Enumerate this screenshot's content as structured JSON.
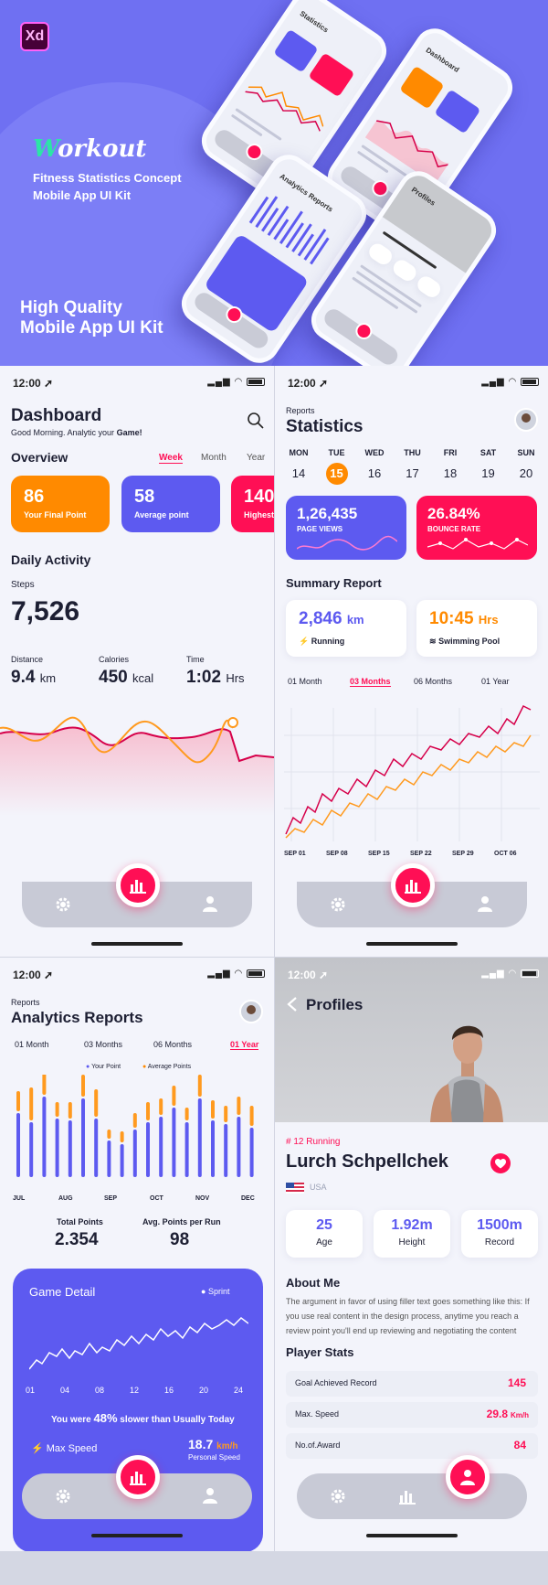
{
  "hero": {
    "badge": "Xd",
    "brand_first": "W",
    "brand_rest": "orkout",
    "subtitle_1": "Fitness Statistics Concept",
    "subtitle_2": "Mobile App UI Kit",
    "hq_1": "High Quality",
    "hq_2": "Mobile App UI Kit",
    "minis": [
      {
        "title": "Statistics"
      },
      {
        "title": "Dashboard"
      },
      {
        "title": "Analytics Reports"
      },
      {
        "title": "Profiles"
      }
    ]
  },
  "status": {
    "time": "12:00 ➚",
    "icons": "▂▄▆ ◠"
  },
  "dashboard": {
    "title": "Dashboard",
    "greeting_1": "Good Morning. Analytic your ",
    "greeting_2": "Game!",
    "overview": "Overview",
    "periods": [
      "Week",
      "Month",
      "Year"
    ],
    "cards": [
      {
        "value": "86",
        "label": "Your Final Point",
        "color": "#ff8a00"
      },
      {
        "value": "58",
        "label": "Average point",
        "color": "#5d5af0"
      },
      {
        "value": "140",
        "label": "Highest",
        "color": "#ff0f55"
      }
    ],
    "daily": "Daily Activity",
    "steps_label": "Steps",
    "steps": "7,526",
    "stats": [
      {
        "label": "Distance",
        "value": "9.4",
        "unit": "km"
      },
      {
        "label": "Calories",
        "value": "450",
        "unit": "kcal"
      },
      {
        "label": "Time",
        "value": "1:02",
        "unit": "Hrs"
      }
    ]
  },
  "statistics": {
    "kicker": "Reports",
    "title": "Statistics",
    "days": [
      {
        "d": "MON",
        "n": "14"
      },
      {
        "d": "TUE",
        "n": "15"
      },
      {
        "d": "WED",
        "n": "16"
      },
      {
        "d": "THU",
        "n": "17"
      },
      {
        "d": "FRI",
        "n": "18"
      },
      {
        "d": "SAT",
        "n": "19"
      },
      {
        "d": "SUN",
        "n": "20"
      }
    ],
    "card1_value": "1,26,435",
    "card1_label": "PAGE VIEWS",
    "card2_value": "26.84%",
    "card2_label": "BOUNCE RATE",
    "summary": "Summary Report",
    "run_value": "2,846",
    "run_unit": "km",
    "run_label": "Running",
    "swim_value": "10:45",
    "swim_unit": "Hrs",
    "swim_label": "Swimming Pool",
    "ranges": [
      "01 Month",
      "03 Months",
      "06 Months",
      "01 Year"
    ],
    "xticks": [
      "SEP 01",
      "SEP 08",
      "SEP 15",
      "SEP 22",
      "SEP 29",
      "OCT 06"
    ]
  },
  "analytics": {
    "kicker": "Reports",
    "title": "Analytics Reports",
    "ranges": [
      "01 Month",
      "03 Months",
      "06 Months",
      "01 Year"
    ],
    "legend_1": "Your Point",
    "legend_2": "Average Points",
    "months": [
      "JUL",
      "AUG",
      "SEP",
      "OCT",
      "NOV",
      "DEC"
    ],
    "total_label": "Total Points",
    "total": "2.354",
    "avg_label": "Avg. Points per Run",
    "avg": "98",
    "game_title": "Game Detail",
    "game_tag": "Sprint",
    "game_x": [
      "01",
      "04",
      "08",
      "12",
      "16",
      "20",
      "24"
    ],
    "slower_1": "You were ",
    "slower_2": "48%",
    "slower_3": " slower than Usually Today",
    "max_label": "Max Speed",
    "speed_value": "18.7",
    "speed_unit": "km/h",
    "speed_label": "Personal Speed"
  },
  "profile": {
    "title": "Profiles",
    "rank": "# 12 Running",
    "name": "Lurch Schpellchek",
    "country": "USA",
    "metrics": [
      {
        "value": "25",
        "label": "Age"
      },
      {
        "value": "1.92m",
        "label": "Height"
      },
      {
        "value": "1500m",
        "label": "Record"
      }
    ],
    "about_title": "About Me",
    "about": "The argument in favor of using filler text goes something like this: If you use real content in the design process, anytime you reach a review point you'll end up reviewing and negotiating the content",
    "stats_title": "Player Stats",
    "stats": [
      {
        "label": "Goal Achieved Record",
        "value": "145",
        "unit": ""
      },
      {
        "label": "Max. Speed",
        "value": "29.8",
        "unit": "Km/h"
      },
      {
        "label": "No.of.Award",
        "value": "84",
        "unit": ""
      }
    ]
  },
  "colors": {
    "accent": "#ff0f55",
    "purple": "#5d5af0",
    "orange": "#ff8a00"
  }
}
